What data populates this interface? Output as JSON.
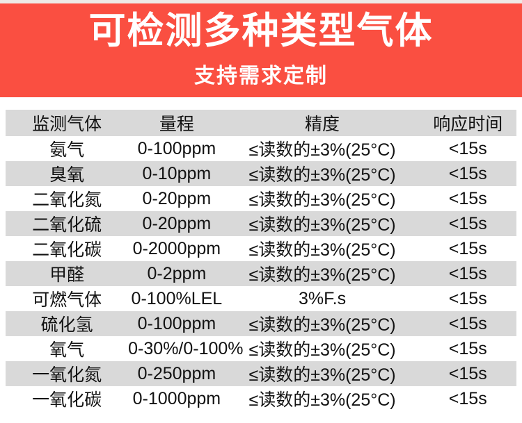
{
  "banner": {
    "title": "可检测多种类型气体",
    "subtitle": "支持需求定制",
    "bg_color": "#fa4f41",
    "text_color": "#ffffff"
  },
  "table": {
    "headers": [
      "监测气体",
      "量程",
      "精度",
      "响应时间"
    ],
    "rows": [
      [
        "氨气",
        "0-100ppm",
        "≤读数的±3%(25°C)",
        "<15s"
      ],
      [
        "臭氧",
        "0-10ppm",
        "≤读数的±3%(25°C)",
        "<15s"
      ],
      [
        "二氧化氮",
        "0-20ppm",
        "≤读数的±3%(25°C)",
        "<15s"
      ],
      [
        "二氧化硫",
        "0-20ppm",
        "≤读数的±3%(25°C)",
        "<15s"
      ],
      [
        "二氧化碳",
        "0-2000ppm",
        "≤读数的±3%(25°C)",
        "<15s"
      ],
      [
        "甲醛",
        "0-2ppm",
        "≤读数的±3%(25°C)",
        "<15s"
      ],
      [
        "可燃气体",
        "0-100%LEL",
        "3%F.s",
        "<15s"
      ],
      [
        "硫化氢",
        "0-100ppm",
        "≤读数的±3%(25°C)",
        "<15s"
      ],
      [
        "氧气",
        "0-30%/0-100%",
        "≤读数的±3%(25°C)",
        "<15s"
      ],
      [
        "一氧化氮",
        "0-250ppm",
        "≤读数的±3%(25°C)",
        "<15s"
      ],
      [
        "一氧化碳",
        "0-1000ppm",
        "≤读数的±3%(25°C)",
        "<15s"
      ]
    ],
    "stripe_color": "#d9d9d9",
    "header_bg_color": "#d9d9d9",
    "text_color": "#121212"
  }
}
